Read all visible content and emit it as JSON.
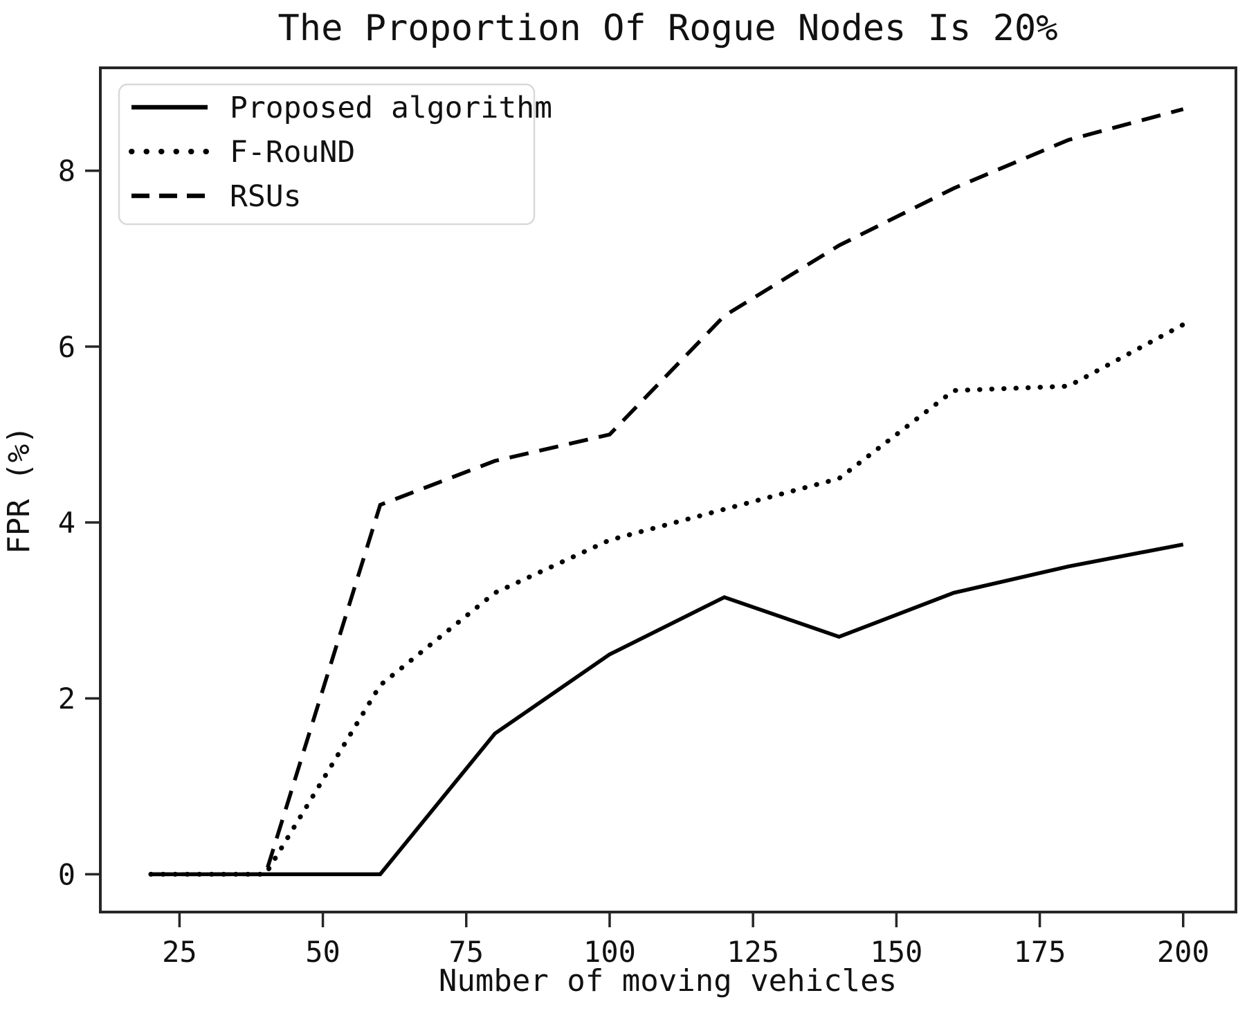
{
  "chart_data": {
    "type": "line",
    "title": "The Proportion Of Rogue Nodes Is 20%",
    "xlabel": "Number of moving vehicles",
    "ylabel": "FPR (%)",
    "x": [
      20,
      40,
      60,
      80,
      100,
      120,
      140,
      160,
      180,
      200
    ],
    "series": [
      {
        "name": "Proposed algorithm",
        "style": "solid",
        "values": [
          0,
          0,
          0,
          1.6,
          2.5,
          3.15,
          2.7,
          3.2,
          3.5,
          3.75
        ]
      },
      {
        "name": "F-RouND",
        "style": "dotted",
        "values": [
          0,
          0,
          2.15,
          3.2,
          3.8,
          4.15,
          4.5,
          5.5,
          5.55,
          6.25
        ]
      },
      {
        "name": "RSUs",
        "style": "dashed",
        "values": [
          0,
          0,
          4.2,
          4.7,
          5.0,
          6.35,
          7.15,
          7.8,
          8.35,
          8.7
        ]
      }
    ],
    "x_ticks": [
      25,
      50,
      75,
      100,
      125,
      150,
      175,
      200
    ],
    "y_ticks": [
      0,
      2,
      4,
      6,
      8
    ],
    "xlim": [
      11.2,
      209.2
    ],
    "ylim": [
      -0.43,
      9.17
    ],
    "grid": false,
    "legend_position": "upper left",
    "line_color": "#000000"
  }
}
